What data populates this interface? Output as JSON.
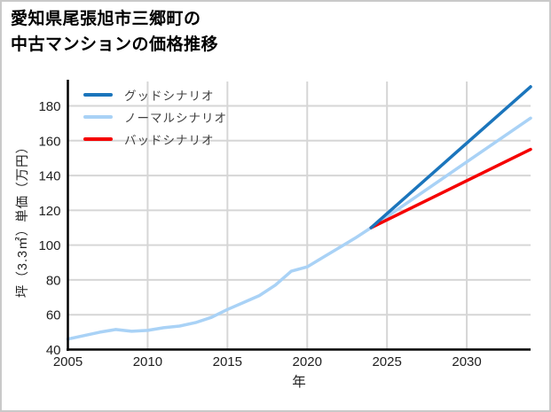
{
  "window": {
    "background": "#ffffff",
    "border_color": "#c9c9c9"
  },
  "title": {
    "line1": "愛知県尾張旭市三郷町の",
    "line2": "中古マンションの価格推移"
  },
  "legend": {
    "items": [
      {
        "label": "グッドシナリオ",
        "color": "#1b75bc"
      },
      {
        "label": "ノーマルシナリオ",
        "color": "#a9d2f6"
      },
      {
        "label": "バッドシナリオ",
        "color": "#f50000"
      }
    ]
  },
  "axes": {
    "x_title": "年",
    "y_title": "坪（3.3㎡）単価（万円）"
  },
  "chart_data": {
    "type": "line",
    "title": "愛知県尾張旭市三郷町の中古マンションの価格推移",
    "xlabel": "年",
    "ylabel": "坪（3.3㎡）単価（万円）",
    "xlim": [
      2005,
      2034
    ],
    "ylim": [
      40,
      194
    ],
    "x_ticks": [
      2005,
      2010,
      2015,
      2020,
      2025,
      2030
    ],
    "y_ticks": [
      40,
      60,
      80,
      100,
      120,
      140,
      160,
      180
    ],
    "grid": true,
    "grid_color": "#d6d6d6",
    "axis_color": "#000000",
    "legend_position": "top-left",
    "series": [
      {
        "name": "ノーマルシナリオ",
        "color": "#a9d2f6",
        "x": [
          2005,
          2006,
          2007,
          2008,
          2009,
          2010,
          2011,
          2012,
          2013,
          2014,
          2015,
          2016,
          2017,
          2018,
          2019,
          2020,
          2021,
          2022,
          2023,
          2024,
          2029,
          2034
        ],
        "values": [
          46,
          48,
          50,
          51.5,
          50.5,
          51,
          52.5,
          53.5,
          55.5,
          58.5,
          63,
          67,
          71,
          77,
          85,
          87.5,
          93,
          98.5,
          104,
          110,
          141.5,
          173
        ]
      },
      {
        "name": "バッドシナリオ",
        "color": "#f50000",
        "x": [
          2024,
          2029,
          2034
        ],
        "values": [
          110,
          132.5,
          155
        ]
      },
      {
        "name": "グッドシナリオ",
        "color": "#1b75bc",
        "x": [
          2024,
          2029,
          2034
        ],
        "values": [
          110,
          150.5,
          191
        ]
      }
    ]
  }
}
